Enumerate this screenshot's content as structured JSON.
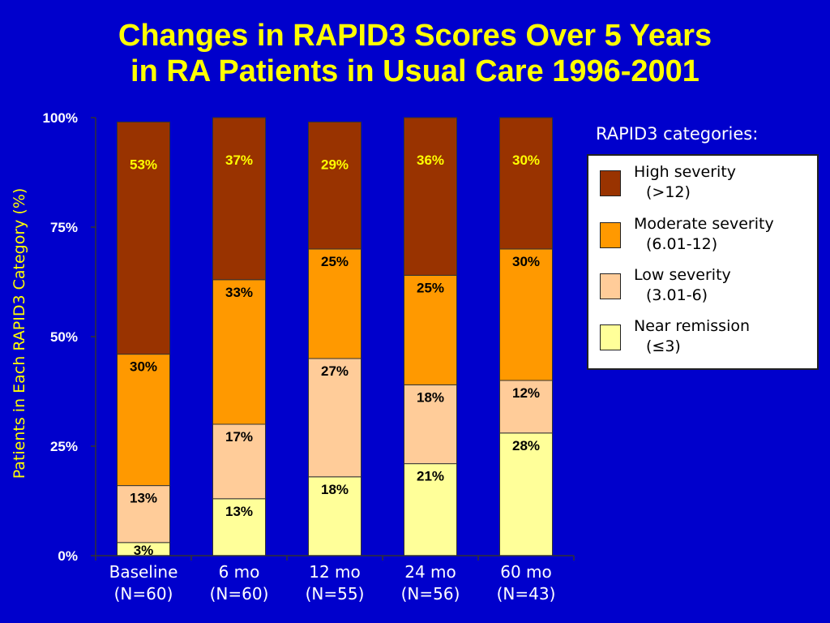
{
  "title": {
    "line1": "Changes in RAPID3 Scores Over 5 Years",
    "line2": "in RA Patients in Usual Care 1996-2001"
  },
  "legend": {
    "title": "RAPID3 categories:",
    "items": [
      {
        "line1": "High severity",
        "line2": "(>12)",
        "color": "#993300"
      },
      {
        "line1": "Moderate severity",
        "line2": "(6.01-12)",
        "color": "#ff9900"
      },
      {
        "line1": "Low severity",
        "line2": "(3.01-6)",
        "color": "#ffcc99"
      },
      {
        "line1": "Near remission",
        "line2": "(≤3)",
        "color": "#ffff99"
      }
    ]
  },
  "colors": {
    "background": "#0000cc",
    "title": "#ffff00",
    "axis_text": "#ffffff",
    "label_on_dark": "#ffff00",
    "label_on_light": "#000000"
  },
  "chart_data": {
    "type": "bar",
    "stacked": true,
    "ylabel": "Patients in Each RAPID3 Category (%)",
    "xlabel": "",
    "ylim": [
      0,
      100
    ],
    "yticks": [
      0,
      25,
      50,
      75,
      100
    ],
    "ytick_labels": [
      "0%",
      "25%",
      "50%",
      "75%",
      "100%"
    ],
    "categories": [
      [
        "Baseline",
        "(N=60)"
      ],
      [
        "6 mo",
        "(N=60)"
      ],
      [
        "12 mo",
        "(N=55)"
      ],
      [
        "24 mo",
        "(N=56)"
      ],
      [
        "60 mo",
        "(N=43)"
      ]
    ],
    "series": [
      {
        "name": "Near remission",
        "color": "#ffff99",
        "values": [
          3,
          13,
          18,
          21,
          28
        ],
        "labels": [
          "3%",
          "13%",
          "18%",
          "21%",
          "28%"
        ]
      },
      {
        "name": "Low severity",
        "color": "#ffcc99",
        "values": [
          13,
          17,
          27,
          18,
          12
        ],
        "labels": [
          "13%",
          "17%",
          "27%",
          "18%",
          "12%"
        ]
      },
      {
        "name": "Moderate severity",
        "color": "#ff9900",
        "values": [
          30,
          33,
          25,
          25,
          30
        ],
        "labels": [
          "30%",
          "33%",
          "25%",
          "25%",
          "30%"
        ]
      },
      {
        "name": "High severity",
        "color": "#993300",
        "values": [
          53,
          37,
          29,
          36,
          30
        ],
        "labels": [
          "53%",
          "37%",
          "29%",
          "36%",
          "30%"
        ]
      }
    ]
  }
}
